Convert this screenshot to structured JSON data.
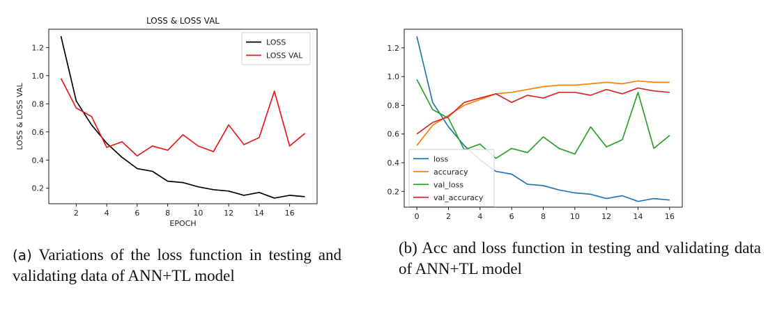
{
  "chart_data": [
    {
      "type": "line",
      "title": "LOSS & LOSS VAL",
      "xlabel": "EPOCH",
      "ylabel": "LOSS & LOSS VAL",
      "xlim": [
        0.2,
        17.8
      ],
      "ylim": [
        0.09,
        1.33
      ],
      "x_ticks": [
        2,
        4,
        6,
        8,
        10,
        12,
        14,
        16
      ],
      "y_ticks": [
        0.2,
        0.4,
        0.6,
        0.8,
        1.0,
        1.2
      ],
      "grid": false,
      "legend_position": "top-right",
      "x": [
        1,
        2,
        3,
        4,
        5,
        6,
        7,
        8,
        9,
        10,
        11,
        12,
        13,
        14,
        15,
        16,
        17
      ],
      "series": [
        {
          "name": "LOSS",
          "color": "#000000",
          "values": [
            1.28,
            0.82,
            0.65,
            0.52,
            0.42,
            0.34,
            0.32,
            0.25,
            0.24,
            0.21,
            0.19,
            0.18,
            0.15,
            0.17,
            0.13,
            0.15,
            0.14
          ]
        },
        {
          "name": "LOSS VAL",
          "color": "#e41a1c",
          "values": [
            0.98,
            0.77,
            0.71,
            0.49,
            0.53,
            0.43,
            0.5,
            0.47,
            0.58,
            0.5,
            0.46,
            0.65,
            0.51,
            0.56,
            0.89,
            0.5,
            0.59
          ]
        }
      ]
    },
    {
      "type": "line",
      "title": "",
      "xlabel": "",
      "ylabel": "",
      "xlim": [
        -0.8,
        16.8
      ],
      "ylim": [
        0.09,
        1.33
      ],
      "x_ticks": [
        0,
        2,
        4,
        6,
        8,
        10,
        12,
        14,
        16
      ],
      "y_ticks": [
        0.2,
        0.4,
        0.6,
        0.8,
        1.0,
        1.2
      ],
      "grid": false,
      "legend_position": "bottom-left",
      "x": [
        0,
        1,
        2,
        3,
        4,
        5,
        6,
        7,
        8,
        9,
        10,
        11,
        12,
        13,
        14,
        15,
        16
      ],
      "series": [
        {
          "name": "loss",
          "color": "#1f77b4",
          "values": [
            1.28,
            0.82,
            0.65,
            0.52,
            0.42,
            0.34,
            0.32,
            0.25,
            0.24,
            0.21,
            0.19,
            0.18,
            0.15,
            0.17,
            0.13,
            0.15,
            0.14
          ]
        },
        {
          "name": "accuracy",
          "color": "#ff7f0e",
          "values": [
            0.52,
            0.66,
            0.73,
            0.8,
            0.84,
            0.88,
            0.89,
            0.91,
            0.93,
            0.94,
            0.94,
            0.95,
            0.96,
            0.95,
            0.97,
            0.96,
            0.96
          ]
        },
        {
          "name": "val_loss",
          "color": "#2ca02c",
          "values": [
            0.98,
            0.77,
            0.71,
            0.49,
            0.53,
            0.43,
            0.5,
            0.47,
            0.58,
            0.5,
            0.46,
            0.65,
            0.51,
            0.56,
            0.89,
            0.5,
            0.59
          ]
        },
        {
          "name": "val_accuracy",
          "color": "#d62728",
          "values": [
            0.6,
            0.68,
            0.72,
            0.82,
            0.85,
            0.88,
            0.82,
            0.87,
            0.85,
            0.89,
            0.89,
            0.87,
            0.91,
            0.88,
            0.92,
            0.9,
            0.89
          ]
        }
      ]
    }
  ],
  "captions": {
    "a_letter": "(a)",
    "a_text": " Variations of the loss function in testing and validating data of ANN+TL model",
    "b_text": "(b) Acc and loss function in testing and validating data of ANN+TL model"
  }
}
